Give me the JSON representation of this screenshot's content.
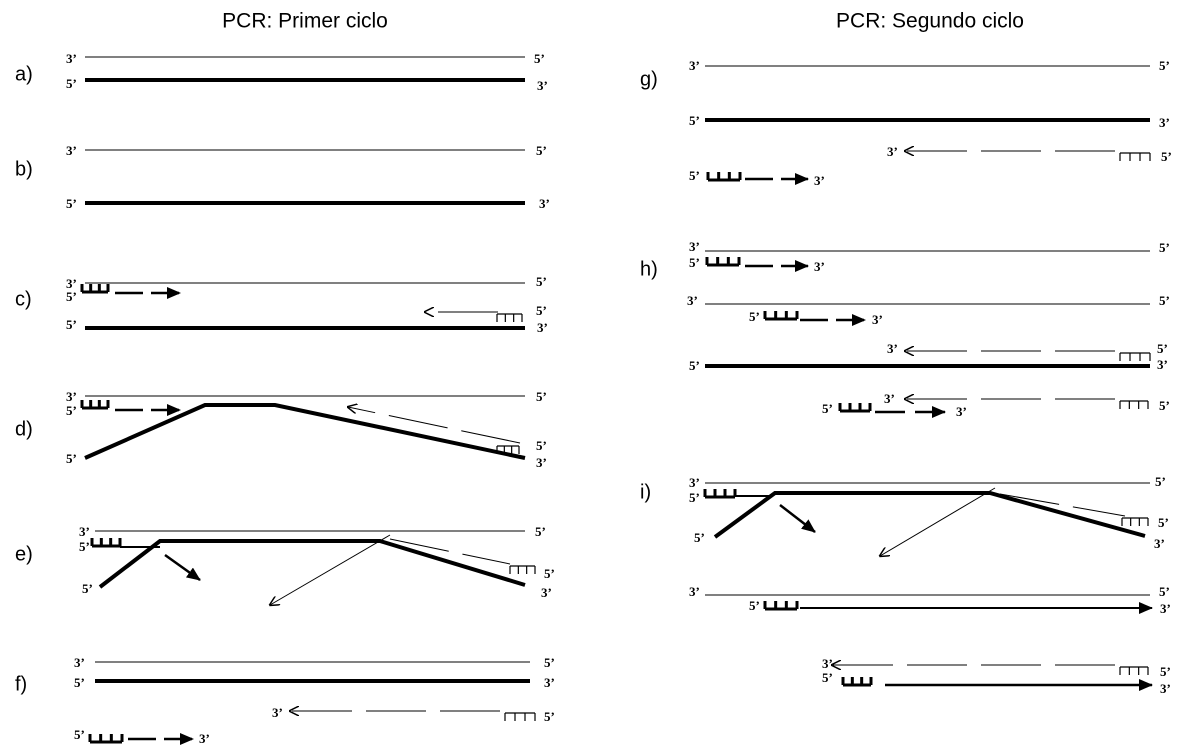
{
  "titles": [
    "PCR: Primer ciclo",
    "PCR: Segundo ciclo"
  ],
  "panels": [
    {
      "label": "a)",
      "ends": [
        "3’",
        "5’",
        "5’",
        "3’"
      ]
    },
    {
      "label": "b)",
      "ends": [
        "3’",
        "5’",
        "5’",
        "3’"
      ]
    },
    {
      "label": "c)",
      "ends": [
        "3’",
        "5’",
        "5’",
        "5’",
        "5’",
        "3’"
      ]
    },
    {
      "label": "d)",
      "ends": [
        "3’",
        "5’",
        "5’",
        "5’",
        "5’",
        "3’"
      ]
    },
    {
      "label": "e)",
      "ends": [
        "3’",
        "5’",
        "5’",
        "5’",
        "5’",
        "3’"
      ]
    },
    {
      "label": "f)",
      "ends": [
        "3’",
        "5’",
        "5’",
        "3’",
        "3’",
        "5’",
        "5’",
        "3’"
      ]
    },
    {
      "label": "g)",
      "ends": [
        "3’",
        "5’",
        "5’",
        "3’",
        "3’",
        "5’",
        "5’",
        "3’"
      ]
    },
    {
      "label": "h)",
      "ends": [
        "3’",
        "5’",
        "3’",
        "5’",
        "3’",
        "5’",
        "5’",
        "3’",
        "3’",
        "5’",
        "5’",
        "3’",
        "3’",
        "5’",
        "3’",
        "5’"
      ]
    },
    {
      "label": "i)",
      "ends": [
        "3’",
        "5’",
        "5’",
        "5’",
        "5’",
        "3’",
        "3’",
        "5’",
        "5’",
        "3’",
        "3’",
        "5’",
        "5’",
        "3’"
      ]
    }
  ]
}
